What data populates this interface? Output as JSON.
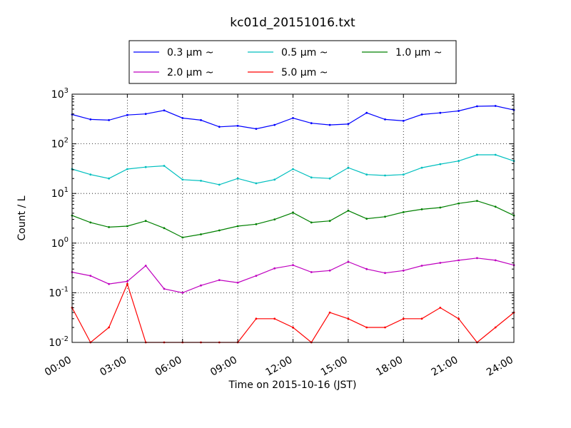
{
  "chart_data": {
    "type": "line",
    "title": "kc01d_20151016.txt",
    "xlabel": "Time on 2015-10-16 (JST)",
    "ylabel": "Count / L",
    "y_scale": "log",
    "ylim": [
      0.01,
      1000
    ],
    "xlim": [
      "00:00",
      "24:00"
    ],
    "x_ticks": [
      "00:00",
      "03:00",
      "06:00",
      "09:00",
      "12:00",
      "15:00",
      "18:00",
      "21:00",
      "24:00"
    ],
    "y_ticks": [
      {
        "base": "10",
        "exp": "-2"
      },
      {
        "base": "10",
        "exp": "-1"
      },
      {
        "base": "10",
        "exp": "0"
      },
      {
        "base": "10",
        "exp": "1"
      },
      {
        "base": "10",
        "exp": "2"
      },
      {
        "base": "10",
        "exp": "3"
      }
    ],
    "grid": true,
    "legend_position": "top-center",
    "x": [
      "00:00",
      "01:00",
      "02:00",
      "03:00",
      "04:00",
      "05:00",
      "06:00",
      "07:00",
      "08:00",
      "09:00",
      "10:00",
      "11:00",
      "12:00",
      "13:00",
      "14:00",
      "15:00",
      "16:00",
      "17:00",
      "18:00",
      "19:00",
      "20:00",
      "21:00",
      "22:00",
      "23:00",
      "24:00"
    ],
    "series": [
      {
        "name": "0.3 μm ~",
        "color": "#0000ff",
        "values": [
          390,
          310,
          300,
          380,
          400,
          470,
          330,
          300,
          220,
          230,
          200,
          240,
          330,
          260,
          240,
          250,
          420,
          310,
          290,
          390,
          420,
          460,
          570,
          580,
          480
        ]
      },
      {
        "name": "0.5 μm ~",
        "color": "#00bfbf",
        "values": [
          31,
          24,
          20,
          31,
          34,
          36,
          19,
          18,
          15,
          20,
          16,
          19,
          31,
          21,
          20,
          33,
          24,
          23,
          24,
          33,
          39,
          45,
          60,
          60,
          45
        ]
      },
      {
        "name": "1.0 μm ~",
        "color": "#008000",
        "values": [
          3.6,
          2.6,
          2.1,
          2.2,
          2.8,
          2.0,
          1.3,
          1.5,
          1.8,
          2.2,
          2.4,
          3.0,
          4.1,
          2.6,
          2.8,
          4.5,
          3.1,
          3.4,
          4.2,
          4.8,
          5.2,
          6.3,
          7.1,
          5.4,
          3.6
        ]
      },
      {
        "name": "2.0 μm ~",
        "color": "#bf00bf",
        "values": [
          0.26,
          0.22,
          0.15,
          0.17,
          0.35,
          0.12,
          0.1,
          0.14,
          0.18,
          0.16,
          0.22,
          0.31,
          0.36,
          0.26,
          0.28,
          0.42,
          0.3,
          0.25,
          0.28,
          0.35,
          0.4,
          0.45,
          0.5,
          0.45,
          0.36
        ]
      },
      {
        "name": "5.0 μm ~",
        "color": "#ff0000",
        "values": [
          0.05,
          0.01,
          0.02,
          0.15,
          0.01,
          0.01,
          0.01,
          0.01,
          0.01,
          0.01,
          0.03,
          0.03,
          0.02,
          0.01,
          0.04,
          0.03,
          0.02,
          0.02,
          0.03,
          0.03,
          0.05,
          0.03,
          0.01,
          0.02,
          0.04
        ]
      }
    ]
  }
}
